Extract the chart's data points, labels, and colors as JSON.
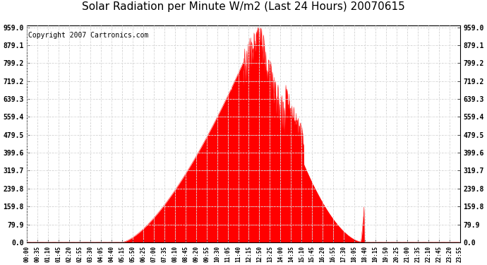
{
  "title": "Solar Radiation per Minute W/m2 (Last 24 Hours) 20070615",
  "copyright": "Copyright 2007 Cartronics.com",
  "yticks": [
    0.0,
    79.9,
    159.8,
    239.8,
    319.7,
    399.6,
    479.5,
    559.4,
    639.3,
    719.2,
    799.2,
    879.1,
    959.0
  ],
  "ymax": 959.0,
  "ymin": 0.0,
  "fill_color": "#FF0000",
  "line_color": "#FF0000",
  "dashed_line_color": "#FF0000",
  "grid_color": "#BBBBBB",
  "bg_color": "#FFFFFF",
  "title_fontsize": 11,
  "copyright_fontsize": 7,
  "xtick_labels": [
    "00:00",
    "00:35",
    "01:10",
    "01:45",
    "02:20",
    "02:55",
    "03:30",
    "04:05",
    "04:40",
    "05:15",
    "05:50",
    "06:25",
    "07:00",
    "07:35",
    "08:10",
    "08:45",
    "09:20",
    "09:55",
    "10:30",
    "11:05",
    "11:40",
    "12:15",
    "12:50",
    "13:25",
    "14:00",
    "14:35",
    "15:10",
    "15:45",
    "16:20",
    "16:55",
    "17:30",
    "18:05",
    "18:40",
    "19:15",
    "19:50",
    "20:25",
    "21:00",
    "21:35",
    "22:10",
    "22:45",
    "23:20",
    "23:55"
  ],
  "num_points": 1440,
  "sunrise_minute": 315,
  "sunset_minute": 1120,
  "peak_minute": 770,
  "peak_value": 959.0,
  "late_spike_minute": 1115,
  "late_spike_value": 159.8
}
